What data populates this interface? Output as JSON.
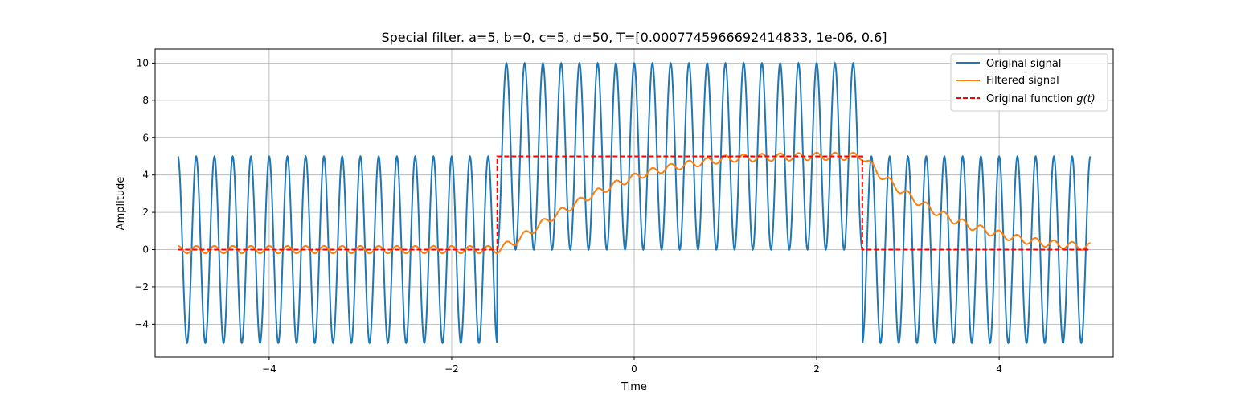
{
  "chart_data": {
    "type": "line",
    "title": "Special filter. a=5, b=0, c=5, d=50, T=[0.0007745966692414833, 1e-06, 0.6]",
    "xlabel": "Time",
    "ylabel": "Amplitude",
    "xlim": [
      -5.25,
      5.25
    ],
    "ylim": [
      -5.75,
      10.75
    ],
    "x_ticks": [
      -4,
      -2,
      0,
      2,
      4
    ],
    "x_tick_labels": [
      "−4",
      "−2",
      "0",
      "2",
      "4"
    ],
    "y_ticks": [
      -4,
      -2,
      0,
      2,
      4,
      6,
      8,
      10
    ],
    "y_tick_labels": [
      "−4",
      "−2",
      "0",
      "2",
      "4",
      "6",
      "8",
      "10"
    ],
    "grid": true,
    "legend_position": "top-right",
    "colors": {
      "original": "#1f77b4",
      "filtered": "#ff7f0e",
      "g": "#ff0000"
    },
    "series": [
      {
        "name": "Original signal",
        "kind": "sinusoid-plus-step",
        "frequency_hz": 5,
        "amplitude": 5,
        "step_start": -1.5,
        "step_end": 2.5,
        "step_level": 5,
        "t_range": [
          -5,
          5
        ]
      },
      {
        "name": "Filtered signal",
        "points": [
          [
            -5.0,
            0.0
          ],
          [
            -1.5,
            0.0
          ],
          [
            -1.3,
            0.45
          ],
          [
            -1.1,
            1.1
          ],
          [
            -0.9,
            1.75
          ],
          [
            -0.7,
            2.3
          ],
          [
            -0.5,
            2.85
          ],
          [
            -0.3,
            3.3
          ],
          [
            -0.1,
            3.7
          ],
          [
            0.1,
            4.05
          ],
          [
            0.3,
            4.3
          ],
          [
            0.5,
            4.5
          ],
          [
            0.7,
            4.65
          ],
          [
            0.9,
            4.8
          ],
          [
            1.1,
            4.9
          ],
          [
            1.5,
            4.95
          ],
          [
            2.0,
            5.0
          ],
          [
            2.5,
            5.0
          ],
          [
            2.7,
            4.0
          ],
          [
            2.9,
            3.25
          ],
          [
            3.1,
            2.6
          ],
          [
            3.3,
            2.05
          ],
          [
            3.5,
            1.6
          ],
          [
            3.7,
            1.25
          ],
          [
            3.9,
            0.95
          ],
          [
            4.1,
            0.7
          ],
          [
            4.3,
            0.5
          ],
          [
            4.5,
            0.35
          ],
          [
            4.7,
            0.25
          ],
          [
            5.0,
            0.15
          ]
        ],
        "ripple_amplitude": 0.2
      },
      {
        "name": "Original function g(t)",
        "points": [
          [
            -5,
            0
          ],
          [
            -1.5,
            0
          ],
          [
            -1.5,
            5
          ],
          [
            2.5,
            5
          ],
          [
            2.5,
            0
          ],
          [
            5,
            0
          ]
        ]
      }
    ]
  }
}
